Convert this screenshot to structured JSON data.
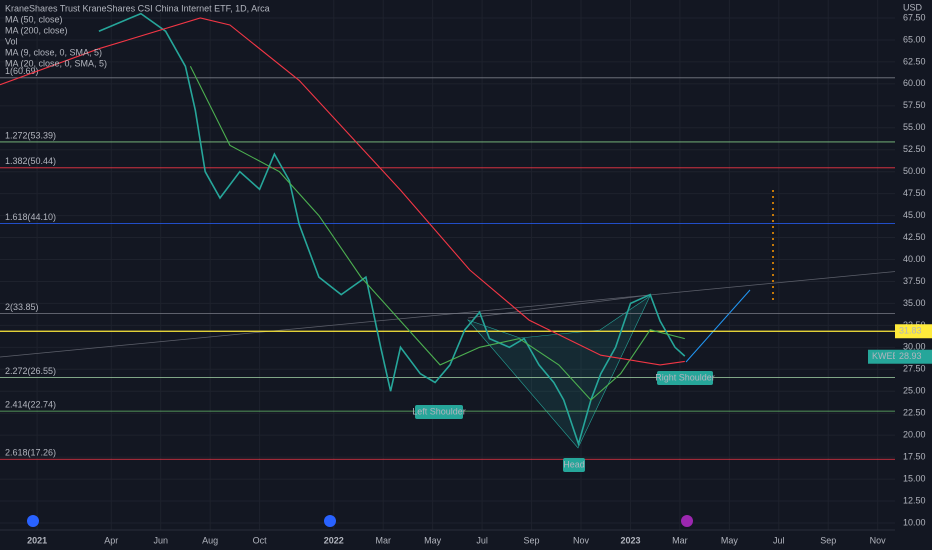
{
  "chart_data": {
    "type": "line",
    "title": "KraneShares Trust KraneShares CSI China Internet ETF, 1D, Arca",
    "y_axis_label": "USD",
    "legend_extra": [
      "Vol",
      "MA (9, close, 0, SMA, 5)",
      "MA (20, close, 0, SMA, 5)"
    ],
    "grid": true,
    "xlim": [
      -1.5,
      34.7
    ],
    "ylim": [
      9.2,
      69.55
    ],
    "xticks": [
      {
        "value": 0,
        "label": "2021"
      },
      {
        "value": 3,
        "label": "Apr"
      },
      {
        "value": 5,
        "label": "Jun"
      },
      {
        "value": 7,
        "label": "Aug"
      },
      {
        "value": 9,
        "label": "Oct"
      },
      {
        "value": 12,
        "label": "2022"
      },
      {
        "value": 14,
        "label": "Mar"
      },
      {
        "value": 16,
        "label": "May"
      },
      {
        "value": 18,
        "label": "Jul"
      },
      {
        "value": 20,
        "label": "Sep"
      },
      {
        "value": 22,
        "label": "Nov"
      },
      {
        "value": 24,
        "label": "2023"
      },
      {
        "value": 26,
        "label": "Mar"
      },
      {
        "value": 28,
        "label": "May"
      },
      {
        "value": 30,
        "label": "Jul"
      },
      {
        "value": 32,
        "label": "Sep"
      },
      {
        "value": 34,
        "label": "Nov"
      }
    ],
    "yticks": [
      {
        "value": 10,
        "label": "10.00"
      },
      {
        "value": 12.5,
        "label": "12.50"
      },
      {
        "value": 15,
        "label": "15.00"
      },
      {
        "value": 17.5,
        "label": "17.50"
      },
      {
        "value": 20,
        "label": "20.00"
      },
      {
        "value": 22.5,
        "label": "22.50"
      },
      {
        "value": 25,
        "label": "25.00"
      },
      {
        "value": 27.5,
        "label": "27.50"
      },
      {
        "value": 30,
        "label": "30.00"
      },
      {
        "value": 32.5,
        "label": "32.50"
      },
      {
        "value": 35,
        "label": "35.00"
      },
      {
        "value": 37.5,
        "label": "37.50"
      },
      {
        "value": 40,
        "label": "40.00"
      },
      {
        "value": 42.5,
        "label": "42.50"
      },
      {
        "value": 45,
        "label": "45.00"
      },
      {
        "value": 47.5,
        "label": "47.50"
      },
      {
        "value": 50,
        "label": "50.00"
      },
      {
        "value": 52.5,
        "label": "52.50"
      },
      {
        "value": 55,
        "label": "55.00"
      },
      {
        "value": 57.5,
        "label": "57.50"
      },
      {
        "value": 60,
        "label": "60.00"
      },
      {
        "value": 62.5,
        "label": "62.50"
      },
      {
        "value": 65,
        "label": "65.00"
      },
      {
        "value": 67.5,
        "label": "67.50"
      }
    ],
    "series": [
      {
        "color": "#26a69a",
        "x": [
          2.5,
          4.2,
          5.2,
          6.0,
          6.4,
          6.8,
          7.4,
          8.2,
          9.0,
          9.6,
          10.2,
          10.6,
          11.4,
          12.3,
          13.3,
          13.9,
          14.3,
          14.7,
          15.5,
          16.1,
          16.7,
          17.3,
          17.9,
          18.3,
          19.1,
          19.7,
          20.3,
          20.9,
          21.3,
          21.9,
          22.4,
          22.8,
          23.4,
          24.0,
          24.8,
          25.2,
          25.8,
          26.2
        ],
        "values": [
          66,
          68,
          66,
          62,
          57,
          50,
          47,
          50,
          48,
          52,
          49,
          44,
          38,
          36,
          38,
          30,
          25,
          30,
          27,
          26,
          28,
          32,
          34,
          31,
          30,
          31,
          28,
          26,
          24,
          19,
          24,
          27,
          30,
          35,
          36,
          33,
          30,
          29
        ]
      },
      {
        "name": "MA (50, close)",
        "color": "#4caf50",
        "x": [
          6.2,
          7.8,
          9.8,
          11.4,
          13.1,
          14.7,
          16.3,
          17.9,
          19.5,
          21.1,
          22.4,
          23.6,
          24.8,
          26.2
        ],
        "values": [
          62,
          53,
          50,
          45,
          38,
          33,
          28,
          30,
          31,
          28,
          24,
          27,
          32,
          31
        ]
      },
      {
        "name": "MA (200, close)",
        "color": "#f23645",
        "x": [
          -1.5,
          2.5,
          6.6,
          7.8,
          10.6,
          14.7,
          17.5,
          19.9,
          22.8,
          25.2,
          26.2
        ],
        "values": [
          59.9,
          64,
          67.5,
          66.7,
          60.4,
          47.9,
          38.8,
          33.1,
          29.1,
          28,
          28.4
        ]
      }
    ],
    "fib_levels": [
      {
        "label": "1(60.69)",
        "value": 60.69,
        "color": "#787b86"
      },
      {
        "label": "1.272(53.39)",
        "value": 53.39,
        "color": "#81c784"
      },
      {
        "label": "1.382(50.44)",
        "value": 50.44,
        "color": "#f23645"
      },
      {
        "label": "1.618(44.10)",
        "value": 44.1,
        "color": "#2962ff"
      },
      {
        "label": "2(33.85)",
        "value": 33.85,
        "color": "#787b86"
      },
      {
        "label": "2.272(26.55)",
        "value": 26.55,
        "color": "#a5d6a7"
      },
      {
        "label": "2.414(22.74)",
        "value": 22.74,
        "color": "#66bb6a"
      },
      {
        "label": "2.618(17.26)",
        "value": 17.26,
        "color": "#f23645"
      }
    ],
    "level": {
      "value": 31.83,
      "color": "#ffeb3b"
    },
    "symbol_tag": "KWEB",
    "last_price": 28.93,
    "annotations": [
      "Left Shoulder",
      "Head",
      "Right Shoulder"
    ]
  }
}
